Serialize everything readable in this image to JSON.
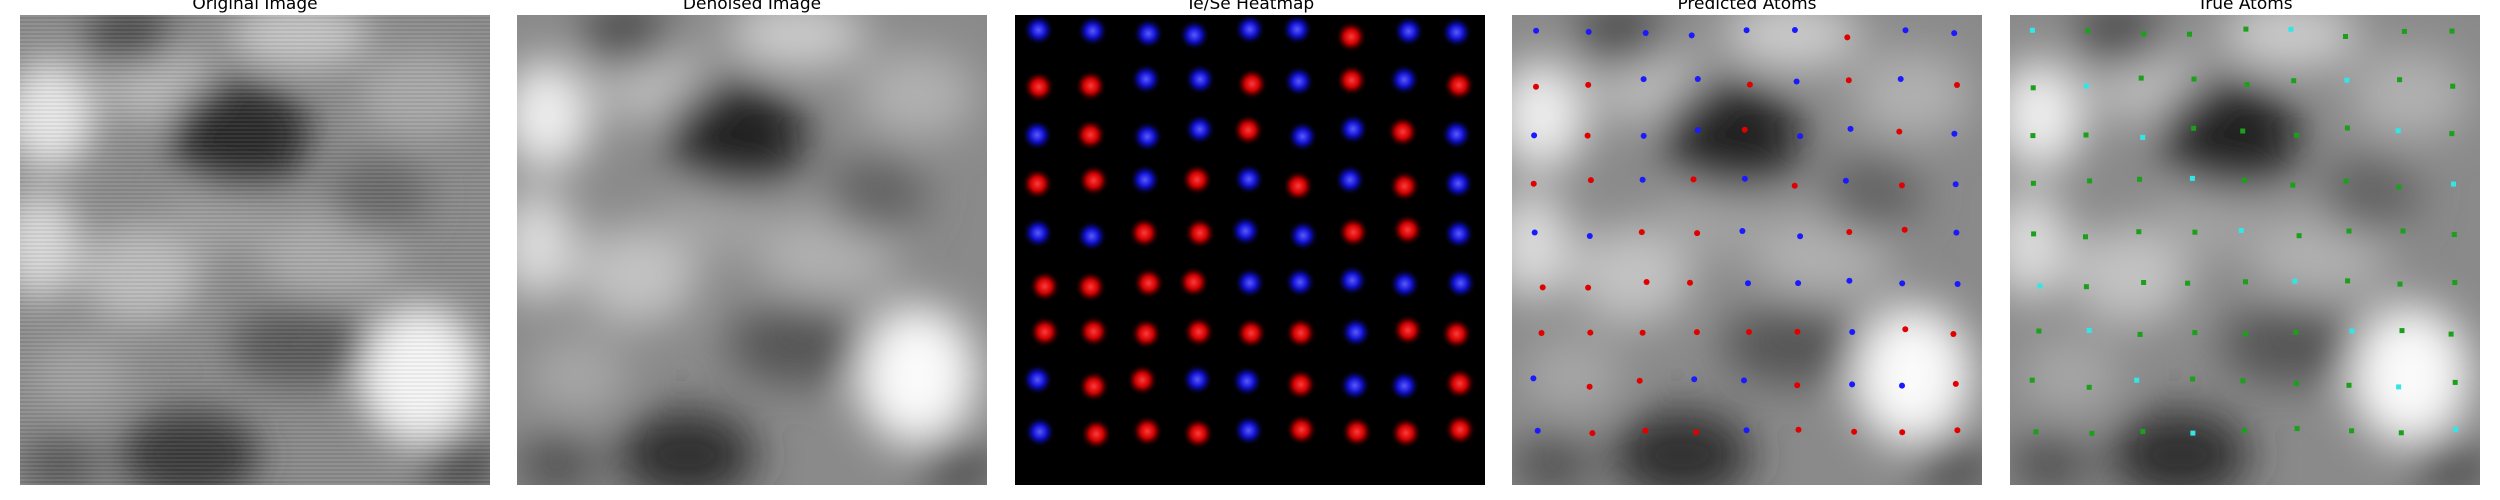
{
  "panels": [
    {
      "id": "original",
      "title": "Original Image"
    },
    {
      "id": "denoised",
      "title": "Denoised Image"
    },
    {
      "id": "heatmap",
      "title": "Te/Se Heatmap"
    },
    {
      "id": "predicted",
      "title": "Predicted Atoms"
    },
    {
      "id": "true",
      "title": "True Atoms"
    }
  ],
  "colors": {
    "background": "#ffffff",
    "te_atom": "#e00000",
    "se_atom": "#1a1aff",
    "true_atom_primary": "#1aa01a",
    "true_atom_secondary": "#33e6e6",
    "heatmap_bg": "#000000"
  }
}
